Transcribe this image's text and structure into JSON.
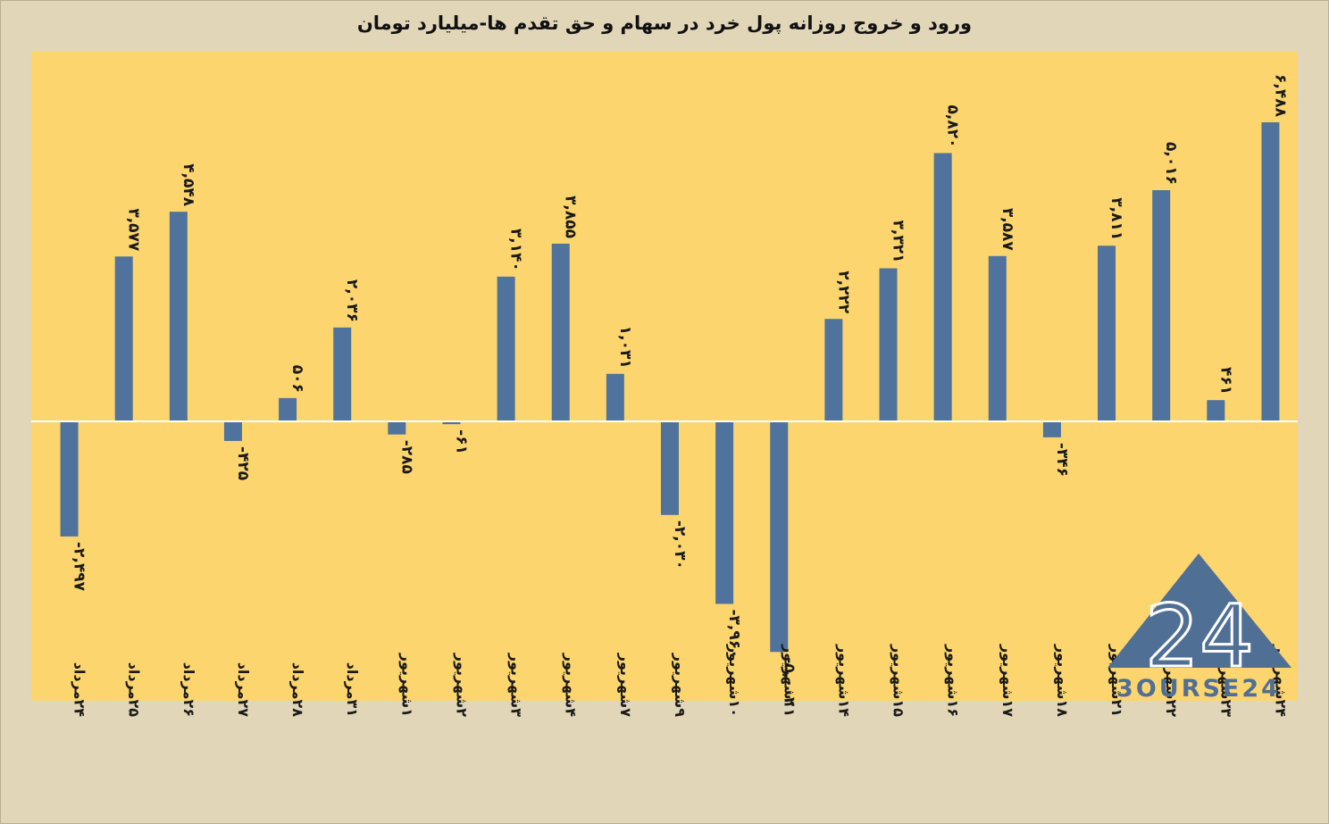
{
  "chart_data": {
    "type": "bar",
    "title": "ورود و خروج روزانه پول خرد در سهام و حق تقدم ها-میلیارد تومان",
    "categories": [
      "۲۴مرداد",
      "۲۵مرداد",
      "۲۶مرداد",
      "۲۷مرداد",
      "۲۸مرداد",
      "۳۱مرداد",
      "۱شهریور",
      "۲شهریور",
      "۳شهریور",
      "۴شهریور",
      "۷شهریور",
      "۹شهریور",
      "۱۰شهریور",
      "۱۱شهریور",
      "۱۴شهریور",
      "۱۵شهریور",
      "۱۶شهریور",
      "۱۷شهریور",
      "۱۸شهریور",
      "۲۱شهریور",
      "۲۲شهریور",
      "۲۳شهریور",
      "۲۴شهریور"
    ],
    "values": [
      -2497,
      3577,
      4548,
      -425,
      506,
      2036,
      -285,
      -61,
      3140,
      3855,
      1031,
      -2030,
      -3960,
      -5002,
      2222,
      3321,
      5820,
      3587,
      -346,
      3811,
      5016,
      461,
      6488
    ],
    "value_labels": [
      "-۲,۴۹۷",
      "۳,۵۷۷",
      "۴,۵۴۸",
      "-۴۲۵",
      "۵۰۶",
      "۲,۰۳۶",
      "-۲۸۵",
      "-۶۱",
      "۳,۱۴۰",
      "۳,۸۵۵",
      "۱,۰۳۱",
      "-۲,۰۳۰",
      "-۳,۹۶۰",
      "-۵,۰۰۲",
      "۲,۲۲۲",
      "۳,۳۲۱",
      "۵,۸۲۰",
      "۳,۵۸۷",
      "-۳۴۶",
      "۳,۸۱۱",
      "۵,۰۱۶",
      "۴۶۱",
      "۶,۴۸۸"
    ],
    "ylim": [
      -6000,
      7500
    ],
    "grid": false,
    "legend": "none"
  },
  "colors": {
    "page_background": "#e2d6b9",
    "plot_background": "#fcd56e",
    "bar": "#4f739c",
    "zero_line": "#ffffff",
    "logo": "#4f6f95"
  },
  "logo": {
    "icon": "triangle-24-icon",
    "digits": "24",
    "text": "3OURSE24"
  }
}
